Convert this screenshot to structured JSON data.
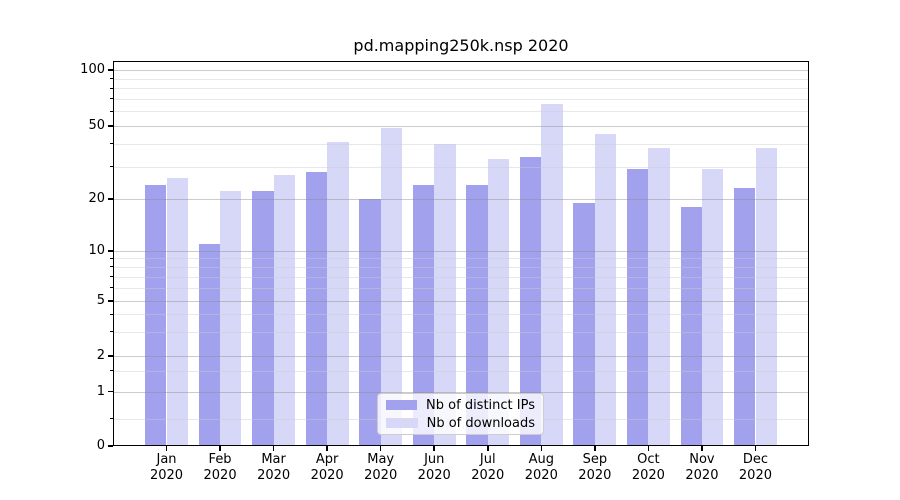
{
  "title": "pd.mapping250k.nsp 2020",
  "colors": {
    "ips_bar": "#a1a1ee",
    "downloads_bar": "#d7d7f7",
    "axis": "#000000",
    "grid_major": "rgba(140,140,140,0.45)",
    "grid_minor": "rgba(205,205,205,0.45)",
    "legend_border": "#cccccc"
  },
  "legend": {
    "items": [
      {
        "label": "Nb of distinct IPs",
        "color": "#a1a1ee"
      },
      {
        "label": "Nb of downloads",
        "color": "#d7d7f7"
      }
    ]
  },
  "chart_data": {
    "type": "bar",
    "title": "pd.mapping250k.nsp 2020",
    "yscale": "symlog",
    "grid": true,
    "legend_position": "lower center",
    "categories": [
      "Jan 2020",
      "Feb 2020",
      "Mar 2020",
      "Apr 2020",
      "May 2020",
      "Jun 2020",
      "Jul 2020",
      "Aug 2020",
      "Sep 2020",
      "Oct 2020",
      "Nov 2020",
      "Dec 2020"
    ],
    "month_labels": [
      "Jan",
      "Feb",
      "Mar",
      "Apr",
      "May",
      "Jun",
      "Jul",
      "Aug",
      "Sep",
      "Oct",
      "Nov",
      "Dec"
    ],
    "year_label": "2020",
    "series": [
      {
        "name": "Nb of distinct IPs",
        "color": "#a1a1ee",
        "values": [
          24,
          11,
          22,
          28,
          20,
          24,
          24,
          34,
          19,
          29,
          18,
          23
        ]
      },
      {
        "name": "Nb of downloads",
        "color": "#d7d7f7",
        "values": [
          26,
          22,
          27,
          41,
          49,
          40,
          33,
          66,
          45,
          38,
          29,
          38
        ]
      }
    ],
    "y_ticks": [
      100,
      50,
      20,
      10,
      5,
      2,
      1,
      0
    ],
    "y_minor_ticks": [
      90,
      80,
      70,
      60,
      40,
      30,
      9,
      8,
      7,
      6,
      4,
      3,
      1.5,
      0.5
    ],
    "ylim": [
      0,
      112
    ]
  }
}
